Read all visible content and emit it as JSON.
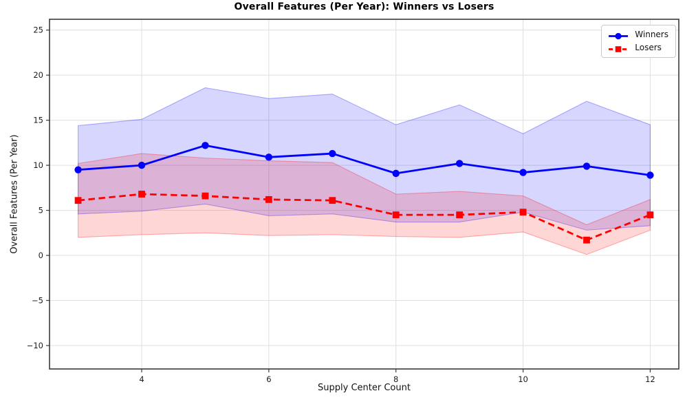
{
  "chart_data": {
    "type": "line",
    "title": "Overall Features (Per Year): Winners vs Losers",
    "xlabel": "Supply Center Count",
    "ylabel": "Overall Features (Per Year)",
    "xlim": [
      2.55,
      12.45
    ],
    "ylim": [
      -12.6,
      26.2
    ],
    "xticks": [
      4,
      6,
      8,
      10,
      12
    ],
    "yticks": [
      -10,
      -5,
      0,
      5,
      10,
      15,
      20,
      25
    ],
    "grid": true,
    "legend_position": "upper right",
    "x": [
      3,
      4,
      5,
      6,
      7,
      8,
      9,
      10,
      11,
      12
    ],
    "series": [
      {
        "name": "Winners",
        "color": "#0000ff",
        "linestyle": "solid",
        "marker": "circle",
        "values": [
          9.5,
          10.0,
          12.2,
          10.9,
          11.3,
          9.1,
          10.2,
          9.2,
          9.9,
          8.9
        ],
        "band_upper": [
          14.4,
          15.1,
          18.6,
          17.4,
          17.9,
          14.5,
          16.7,
          13.5,
          17.1,
          14.5
        ],
        "band_lower": [
          4.6,
          4.9,
          5.7,
          4.4,
          4.6,
          3.7,
          3.7,
          4.8,
          2.8,
          3.3
        ]
      },
      {
        "name": "Losers",
        "color": "#ff0000",
        "linestyle": "dashed",
        "marker": "square",
        "values": [
          6.1,
          6.8,
          6.6,
          6.2,
          6.1,
          4.5,
          4.5,
          4.8,
          1.7,
          4.5
        ],
        "band_upper": [
          10.2,
          11.3,
          10.8,
          10.5,
          10.3,
          6.8,
          7.1,
          6.6,
          3.4,
          6.2
        ],
        "band_lower": [
          2.0,
          2.3,
          2.5,
          2.2,
          2.3,
          2.1,
          2.0,
          2.6,
          0.1,
          2.8
        ]
      }
    ]
  }
}
